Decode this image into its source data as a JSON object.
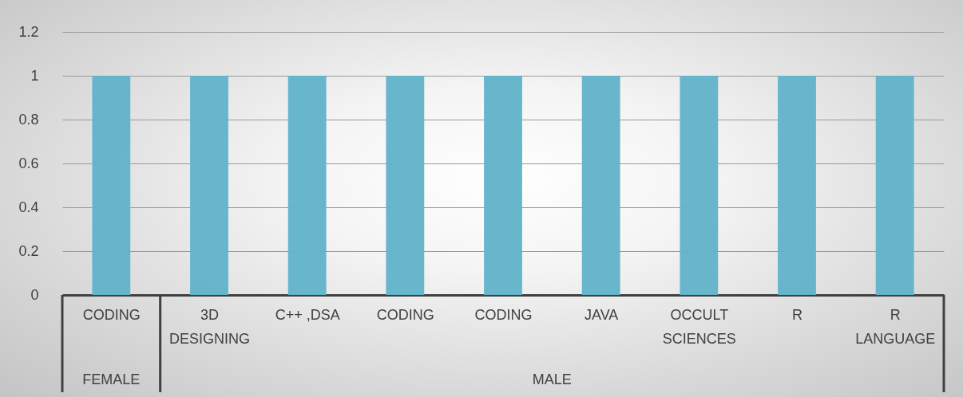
{
  "chart_data": {
    "type": "bar",
    "categories": [
      "CODING",
      "3D DESIGNING",
      "C++ ,DSA",
      "CODING",
      "CODING",
      "JAVA",
      "OCCULT SCIENCES",
      "R",
      "R LANGUAGE"
    ],
    "values": [
      1,
      1,
      1,
      1,
      1,
      1,
      1,
      1,
      1
    ],
    "color": "#62b4ca",
    "ylim": [
      0,
      1.2
    ],
    "yticks": [
      0,
      0.2,
      0.4,
      0.6,
      0.8,
      1,
      1.2
    ],
    "grid": "y",
    "annotations": [
      "FEMALE",
      "MALE"
    ]
  }
}
